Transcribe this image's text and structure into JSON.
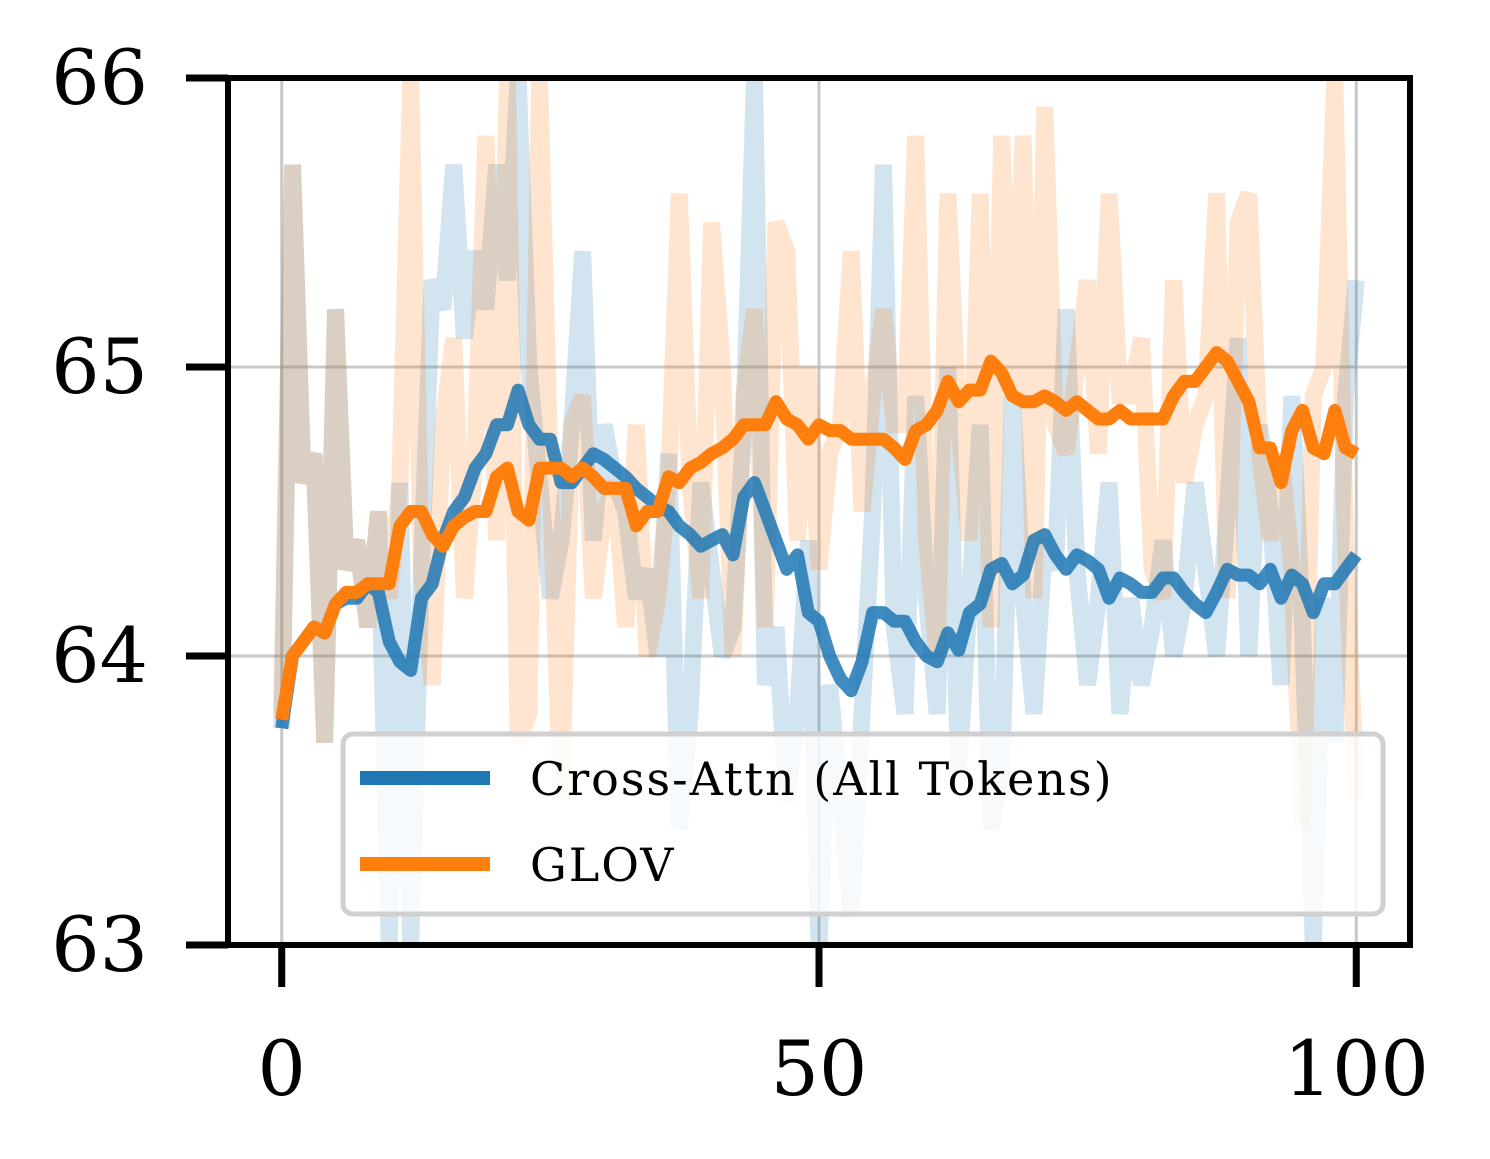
{
  "chart_data": {
    "type": "line",
    "title": "",
    "xlabel": "",
    "ylabel": "",
    "xlim": [
      -5,
      105
    ],
    "ylim": [
      63,
      66
    ],
    "xticks": [
      0,
      50,
      100
    ],
    "yticks": [
      63,
      64,
      65,
      66
    ],
    "grid": true,
    "legend": {
      "placement": "lower-right",
      "entries": [
        "Cross-Attn (All Tokens)",
        "GLOV"
      ]
    },
    "x": [
      0,
      1,
      2,
      3,
      4,
      5,
      6,
      7,
      8,
      9,
      10,
      11,
      12,
      13,
      14,
      15,
      16,
      17,
      18,
      19,
      20,
      21,
      22,
      23,
      24,
      25,
      26,
      27,
      28,
      29,
      30,
      31,
      32,
      33,
      34,
      35,
      36,
      37,
      38,
      39,
      40,
      41,
      42,
      43,
      44,
      45,
      46,
      47,
      48,
      49,
      50,
      51,
      52,
      53,
      54,
      55,
      56,
      57,
      58,
      59,
      60,
      61,
      62,
      63,
      64,
      65,
      66,
      67,
      68,
      69,
      70,
      71,
      72,
      73,
      74,
      75,
      76,
      77,
      78,
      79,
      80,
      81,
      82,
      83,
      84,
      85,
      86,
      87,
      88,
      89,
      90,
      91,
      92,
      93,
      94,
      95,
      96,
      97,
      98,
      99,
      100
    ],
    "series": [
      {
        "name": "Cross-Attn (All Tokens)",
        "color": "#1f77b4",
        "raw": [
          63.75,
          65.7,
          64.6,
          64.7,
          63.7,
          65.2,
          64.3,
          64.4,
          64.1,
          64.5,
          63.0,
          64.6,
          63.0,
          64.3,
          65.3,
          65.2,
          65.7,
          65.1,
          65.4,
          65.2,
          65.7,
          65.3,
          66.0,
          65.0,
          64.6,
          64.2,
          64.4,
          64.8,
          65.4,
          64.4,
          64.8,
          64.6,
          64.5,
          64.2,
          64.3,
          64.0,
          64.7,
          63.4,
          63.8,
          64.6,
          64.3,
          64.0,
          64.1,
          64.8,
          66.0,
          63.9,
          64.1,
          63.5,
          63.8,
          64.4,
          63.0,
          63.9,
          63.5,
          63.1,
          63.8,
          64.5,
          65.7,
          64.1,
          63.8,
          64.9,
          64.2,
          63.8,
          65.0,
          63.6,
          64.2,
          64.8,
          63.4,
          63.6,
          64.9,
          64.2,
          63.8,
          64.4,
          64.3,
          65.2,
          64.3,
          63.9,
          64.2,
          64.6,
          63.8,
          64.2,
          63.9,
          64.1,
          64.4,
          64.0,
          64.2,
          64.6,
          64.3,
          64.0,
          64.5,
          65.1,
          64.0,
          64.8,
          64.5,
          63.9,
          64.9,
          64.1,
          63.0,
          64.2,
          63.7,
          64.9,
          65.3
        ],
        "smoothed": [
          63.75,
          64.0,
          64.05,
          64.1,
          64.08,
          64.18,
          64.2,
          64.2,
          64.25,
          64.22,
          64.05,
          63.98,
          63.95,
          64.2,
          64.25,
          64.4,
          64.5,
          64.55,
          64.65,
          64.7,
          64.8,
          64.8,
          64.92,
          64.8,
          64.75,
          64.75,
          64.6,
          64.6,
          64.65,
          64.7,
          64.68,
          64.65,
          64.62,
          64.58,
          64.55,
          64.52,
          64.5,
          64.45,
          64.42,
          64.38,
          64.4,
          64.42,
          64.35,
          64.55,
          64.6,
          64.5,
          64.4,
          64.3,
          64.35,
          64.15,
          64.12,
          64.0,
          63.92,
          63.88,
          63.98,
          64.15,
          64.15,
          64.12,
          64.12,
          64.05,
          64.0,
          63.98,
          64.08,
          64.02,
          64.15,
          64.18,
          64.3,
          64.32,
          64.25,
          64.28,
          64.4,
          64.42,
          64.35,
          64.3,
          64.35,
          64.33,
          64.3,
          64.2,
          64.27,
          64.25,
          64.22,
          64.22,
          64.27,
          64.27,
          64.22,
          64.18,
          64.15,
          64.22,
          64.3,
          64.28,
          64.28,
          64.25,
          64.3,
          64.2,
          64.28,
          64.25,
          64.15,
          64.25,
          64.25,
          64.3,
          64.35
        ]
      },
      {
        "name": "GLOV",
        "color": "#ff7f0e",
        "raw": [
          63.8,
          65.7,
          64.6,
          64.7,
          63.7,
          65.2,
          64.3,
          64.4,
          64.1,
          64.5,
          64.2,
          64.6,
          66.0,
          64.3,
          63.9,
          64.8,
          65.1,
          64.2,
          64.7,
          65.8,
          64.4,
          66.0,
          63.7,
          63.8,
          66.0,
          64.6,
          63.5,
          64.8,
          64.9,
          64.2,
          64.5,
          64.6,
          64.1,
          64.8,
          64.0,
          64.2,
          64.6,
          65.6,
          64.6,
          64.2,
          65.5,
          65.0,
          64.0,
          64.9,
          65.2,
          64.1,
          65.5,
          65.4,
          64.4,
          65.0,
          64.3,
          64.7,
          64.8,
          65.4,
          64.5,
          64.9,
          65.2,
          64.8,
          64.8,
          65.8,
          64.4,
          64.0,
          65.6,
          64.8,
          64.4,
          65.6,
          64.1,
          65.8,
          64.9,
          65.8,
          64.2,
          65.9,
          64.8,
          64.7,
          65.0,
          65.3,
          64.7,
          65.6,
          64.9,
          64.9,
          65.1,
          64.3,
          64.2,
          65.3,
          64.6,
          64.8,
          64.9,
          65.6,
          64.2,
          65.5,
          65.6,
          64.7,
          64.4,
          64.7,
          64.3,
          63.4,
          64.9,
          65.0,
          66.0,
          64.4,
          63.5
        ],
        "smoothed": [
          63.78,
          64.0,
          64.05,
          64.1,
          64.08,
          64.18,
          64.22,
          64.22,
          64.25,
          64.25,
          64.25,
          64.45,
          64.5,
          64.5,
          64.42,
          64.38,
          64.45,
          64.48,
          64.5,
          64.5,
          64.62,
          64.65,
          64.5,
          64.47,
          64.65,
          64.65,
          64.65,
          64.62,
          64.65,
          64.62,
          64.58,
          64.58,
          64.58,
          64.45,
          64.5,
          64.5,
          64.62,
          64.6,
          64.65,
          64.67,
          64.7,
          64.72,
          64.75,
          64.8,
          64.8,
          64.8,
          64.88,
          64.82,
          64.8,
          64.75,
          64.8,
          64.78,
          64.78,
          64.75,
          64.75,
          64.75,
          64.75,
          64.72,
          64.68,
          64.78,
          64.8,
          64.85,
          64.95,
          64.88,
          64.92,
          64.92,
          65.02,
          64.98,
          64.9,
          64.88,
          64.88,
          64.9,
          64.88,
          64.85,
          64.88,
          64.85,
          64.82,
          64.82,
          64.85,
          64.82,
          64.82,
          64.82,
          64.82,
          64.9,
          64.95,
          64.95,
          65.0,
          65.05,
          65.02,
          64.95,
          64.88,
          64.72,
          64.72,
          64.6,
          64.78,
          64.85,
          64.72,
          64.7,
          64.85,
          64.72,
          64.7
        ]
      }
    ]
  }
}
